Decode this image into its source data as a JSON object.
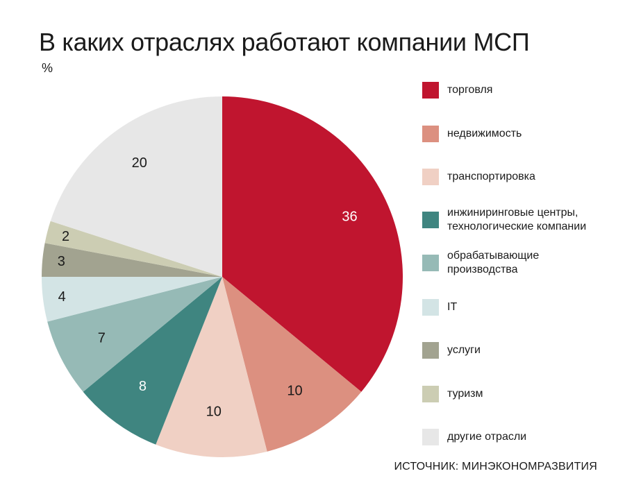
{
  "title": "В каких отраслях работают компании МСП",
  "unit": "%",
  "source": "ИСТОЧНИК: МИНЭКОНОМРАЗВИТИЯ",
  "chart_data": {
    "type": "pie",
    "categories": [
      "торговля",
      "недвижимость",
      "транспортировка",
      "инжиниринговые центры, технологические компании",
      "обрабатывающие производства",
      "IT",
      "услуги",
      "туризм",
      "другие отрасли"
    ],
    "values": [
      36,
      10,
      10,
      8,
      7,
      4,
      3,
      2,
      20
    ],
    "colors": [
      "#c0152f",
      "#dc9080",
      "#f0d0c4",
      "#3f8580",
      "#96bab6",
      "#d3e4e5",
      "#a2a390",
      "#cccdb3",
      "#e7e7e7"
    ],
    "label_colors": [
      "#ffffff",
      "#1a1a1a",
      "#1a1a1a",
      "#ffffff",
      "#1a1a1a",
      "#1a1a1a",
      "#1a1a1a",
      "#1a1a1a",
      "#1a1a1a"
    ],
    "legend": {
      "placement": "right",
      "items": [
        {
          "lines": [
            "торговля"
          ]
        },
        {
          "lines": [
            "недвижимость"
          ]
        },
        {
          "lines": [
            "транспортировка"
          ]
        },
        {
          "lines": [
            "инжиниринговые центры,",
            "технологические компании"
          ]
        },
        {
          "lines": [
            "обрабатывающие",
            "производства"
          ]
        },
        {
          "lines": [
            "IT"
          ]
        },
        {
          "lines": [
            "услуги"
          ]
        },
        {
          "lines": [
            "туризм"
          ]
        },
        {
          "lines": [
            "другие отрасли"
          ]
        }
      ]
    }
  }
}
